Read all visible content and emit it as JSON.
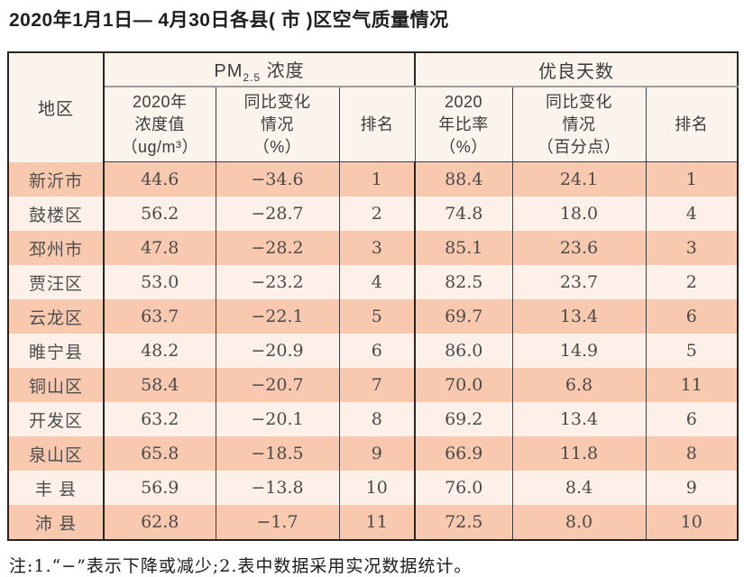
{
  "page": {
    "title": "2020年1月1日— 4月30日各县( 市 )区空气质量情况",
    "footnote": "注:1.“−”表示下降或减少;2.表中数据采用实况数据统计。"
  },
  "colors": {
    "row_salmon": "#f8c9af",
    "row_light": "#fdf0e8",
    "header_bg": "#faf4ec",
    "border_dark": "#262626",
    "border_thin": "#3f3f3f",
    "group_underline_gray": "#9c9c9c"
  },
  "table": {
    "region_header": "地区",
    "pm_group": {
      "prefix": "PM",
      "subscript": "2.5",
      "suffix": " 浓度"
    },
    "good_days_group": "优良天数",
    "subheaders": {
      "pm_value": "2020年\n浓度值\n（ug/m³）",
      "pm_change": "同比变化\n情况\n（%）",
      "pm_rank": "排名",
      "good_ratio": "2020\n年比率\n（%）",
      "good_change": "同比变化\n情况\n（百分点）",
      "good_rank": "排名"
    },
    "rows": [
      [
        "新沂市",
        "44.6",
        "−34.6",
        "1",
        "88.4",
        "24.1",
        "1"
      ],
      [
        "鼓楼区",
        "56.2",
        "−28.7",
        "2",
        "74.8",
        "18.0",
        "4"
      ],
      [
        "邳州市",
        "47.8",
        "−28.2",
        "3",
        "85.1",
        "23.6",
        "3"
      ],
      [
        "贾汪区",
        "53.0",
        "−23.2",
        "4",
        "82.5",
        "23.7",
        "2"
      ],
      [
        "云龙区",
        "63.7",
        "−22.1",
        "5",
        "69.7",
        "13.4",
        "6"
      ],
      [
        "睢宁县",
        "48.2",
        "−20.9",
        "6",
        "86.0",
        "14.9",
        "5"
      ],
      [
        "铜山区",
        "58.4",
        "−20.7",
        "7",
        "70.0",
        "6.8",
        "11"
      ],
      [
        "开发区",
        "63.2",
        "−20.1",
        "8",
        "69.2",
        "13.4",
        "6"
      ],
      [
        "泉山区",
        "65.8",
        "−18.5",
        "9",
        "66.9",
        "11.8",
        "8"
      ],
      [
        "丰 县",
        "56.9",
        "−13.8",
        "10",
        "76.0",
        "8.4",
        "9"
      ],
      [
        "沛 县",
        "62.8",
        "−1.7",
        "11",
        "72.5",
        "8.0",
        "10"
      ]
    ]
  }
}
